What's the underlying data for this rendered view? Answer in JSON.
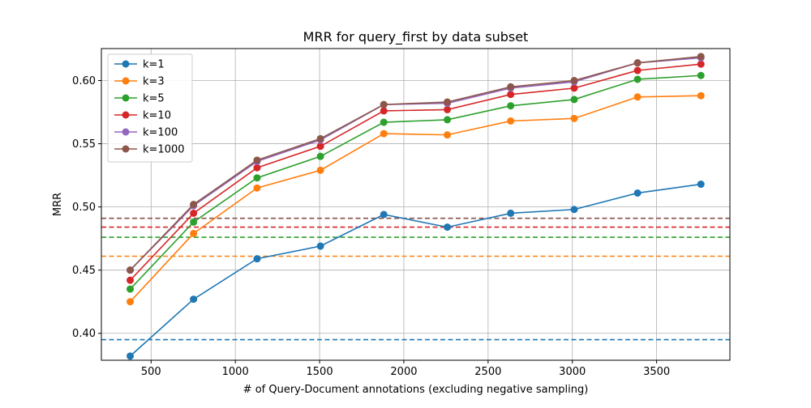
{
  "chart_data": {
    "type": "line",
    "title": "MRR for query_first by data subset",
    "xlabel": "# of Query-Document annotations (excluding negative sampling)",
    "ylabel": "MRR",
    "xlim": [
      205,
      3935
    ],
    "ylim": [
      0.3787,
      0.6253
    ],
    "x_ticks": [
      500,
      1000,
      1500,
      2000,
      2500,
      3000,
      3500
    ],
    "y_ticks": [
      0.4,
      0.45,
      0.5,
      0.55,
      0.6
    ],
    "x_tick_labels": [
      "500",
      "1000",
      "1500",
      "2000",
      "2500",
      "3000",
      "3500"
    ],
    "y_tick_labels": [
      "0.40",
      "0.45",
      "0.50",
      "0.55",
      "0.60"
    ],
    "grid": true,
    "legend_position": "top-left",
    "x": [
      376,
      752,
      1129,
      1505,
      1881,
      2258,
      2634,
      3011,
      3387,
      3763
    ],
    "series": [
      {
        "name": "k=1",
        "color": "#1f77b4",
        "baseline": 0.395,
        "values": [
          0.382,
          0.427,
          0.459,
          0.469,
          0.494,
          0.484,
          0.495,
          0.498,
          0.511,
          0.518
        ]
      },
      {
        "name": "k=3",
        "color": "#ff7f0e",
        "baseline": 0.461,
        "values": [
          0.425,
          0.479,
          0.515,
          0.529,
          0.558,
          0.557,
          0.568,
          0.57,
          0.587,
          0.588
        ]
      },
      {
        "name": "k=5",
        "color": "#2ca02c",
        "baseline": 0.476,
        "values": [
          0.435,
          0.488,
          0.523,
          0.54,
          0.567,
          0.569,
          0.58,
          0.585,
          0.601,
          0.604
        ]
      },
      {
        "name": "k=10",
        "color": "#d62728",
        "baseline": 0.484,
        "values": [
          0.442,
          0.495,
          0.531,
          0.548,
          0.576,
          0.577,
          0.589,
          0.594,
          0.608,
          0.613
        ]
      },
      {
        "name": "k=100",
        "color": "#9467bd",
        "baseline": 0.491,
        "values": [
          0.45,
          0.501,
          0.536,
          0.553,
          0.581,
          0.582,
          0.594,
          0.599,
          0.614,
          0.618
        ]
      },
      {
        "name": "k=1000",
        "color": "#8c564b",
        "baseline": 0.491,
        "values": [
          0.45,
          0.502,
          0.537,
          0.554,
          0.581,
          0.583,
          0.595,
          0.6,
          0.614,
          0.619
        ]
      }
    ]
  }
}
